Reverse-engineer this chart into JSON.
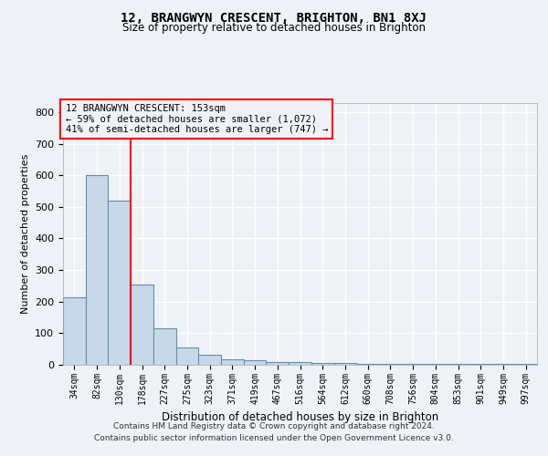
{
  "title": "12, BRANGWYN CRESCENT, BRIGHTON, BN1 8XJ",
  "subtitle": "Size of property relative to detached houses in Brighton",
  "xlabel": "Distribution of detached houses by size in Brighton",
  "ylabel": "Number of detached properties",
  "bar_color": "#c8d8e8",
  "bar_edge_color": "#6090b0",
  "bin_labels": [
    "34sqm",
    "82sqm",
    "130sqm",
    "178sqm",
    "227sqm",
    "275sqm",
    "323sqm",
    "371sqm",
    "419sqm",
    "467sqm",
    "516sqm",
    "564sqm",
    "612sqm",
    "660sqm",
    "708sqm",
    "756sqm",
    "804sqm",
    "853sqm",
    "901sqm",
    "949sqm",
    "997sqm"
  ],
  "bar_values": [
    215,
    600,
    520,
    255,
    115,
    55,
    33,
    18,
    15,
    10,
    8,
    5,
    5,
    4,
    3,
    3,
    2,
    2,
    2,
    2,
    2
  ],
  "ylim": [
    0,
    830
  ],
  "yticks": [
    0,
    100,
    200,
    300,
    400,
    500,
    600,
    700,
    800
  ],
  "vline_x": 2.5,
  "annotation_lines": [
    "12 BRANGWYN CRESCENT: 153sqm",
    "← 59% of detached houses are smaller (1,072)",
    "41% of semi-detached houses are larger (747) →"
  ],
  "footer_line1": "Contains HM Land Registry data © Crown copyright and database right 2024.",
  "footer_line2": "Contains public sector information licensed under the Open Government Licence v3.0.",
  "background_color": "#eef2f7",
  "grid_color": "#ffffff"
}
